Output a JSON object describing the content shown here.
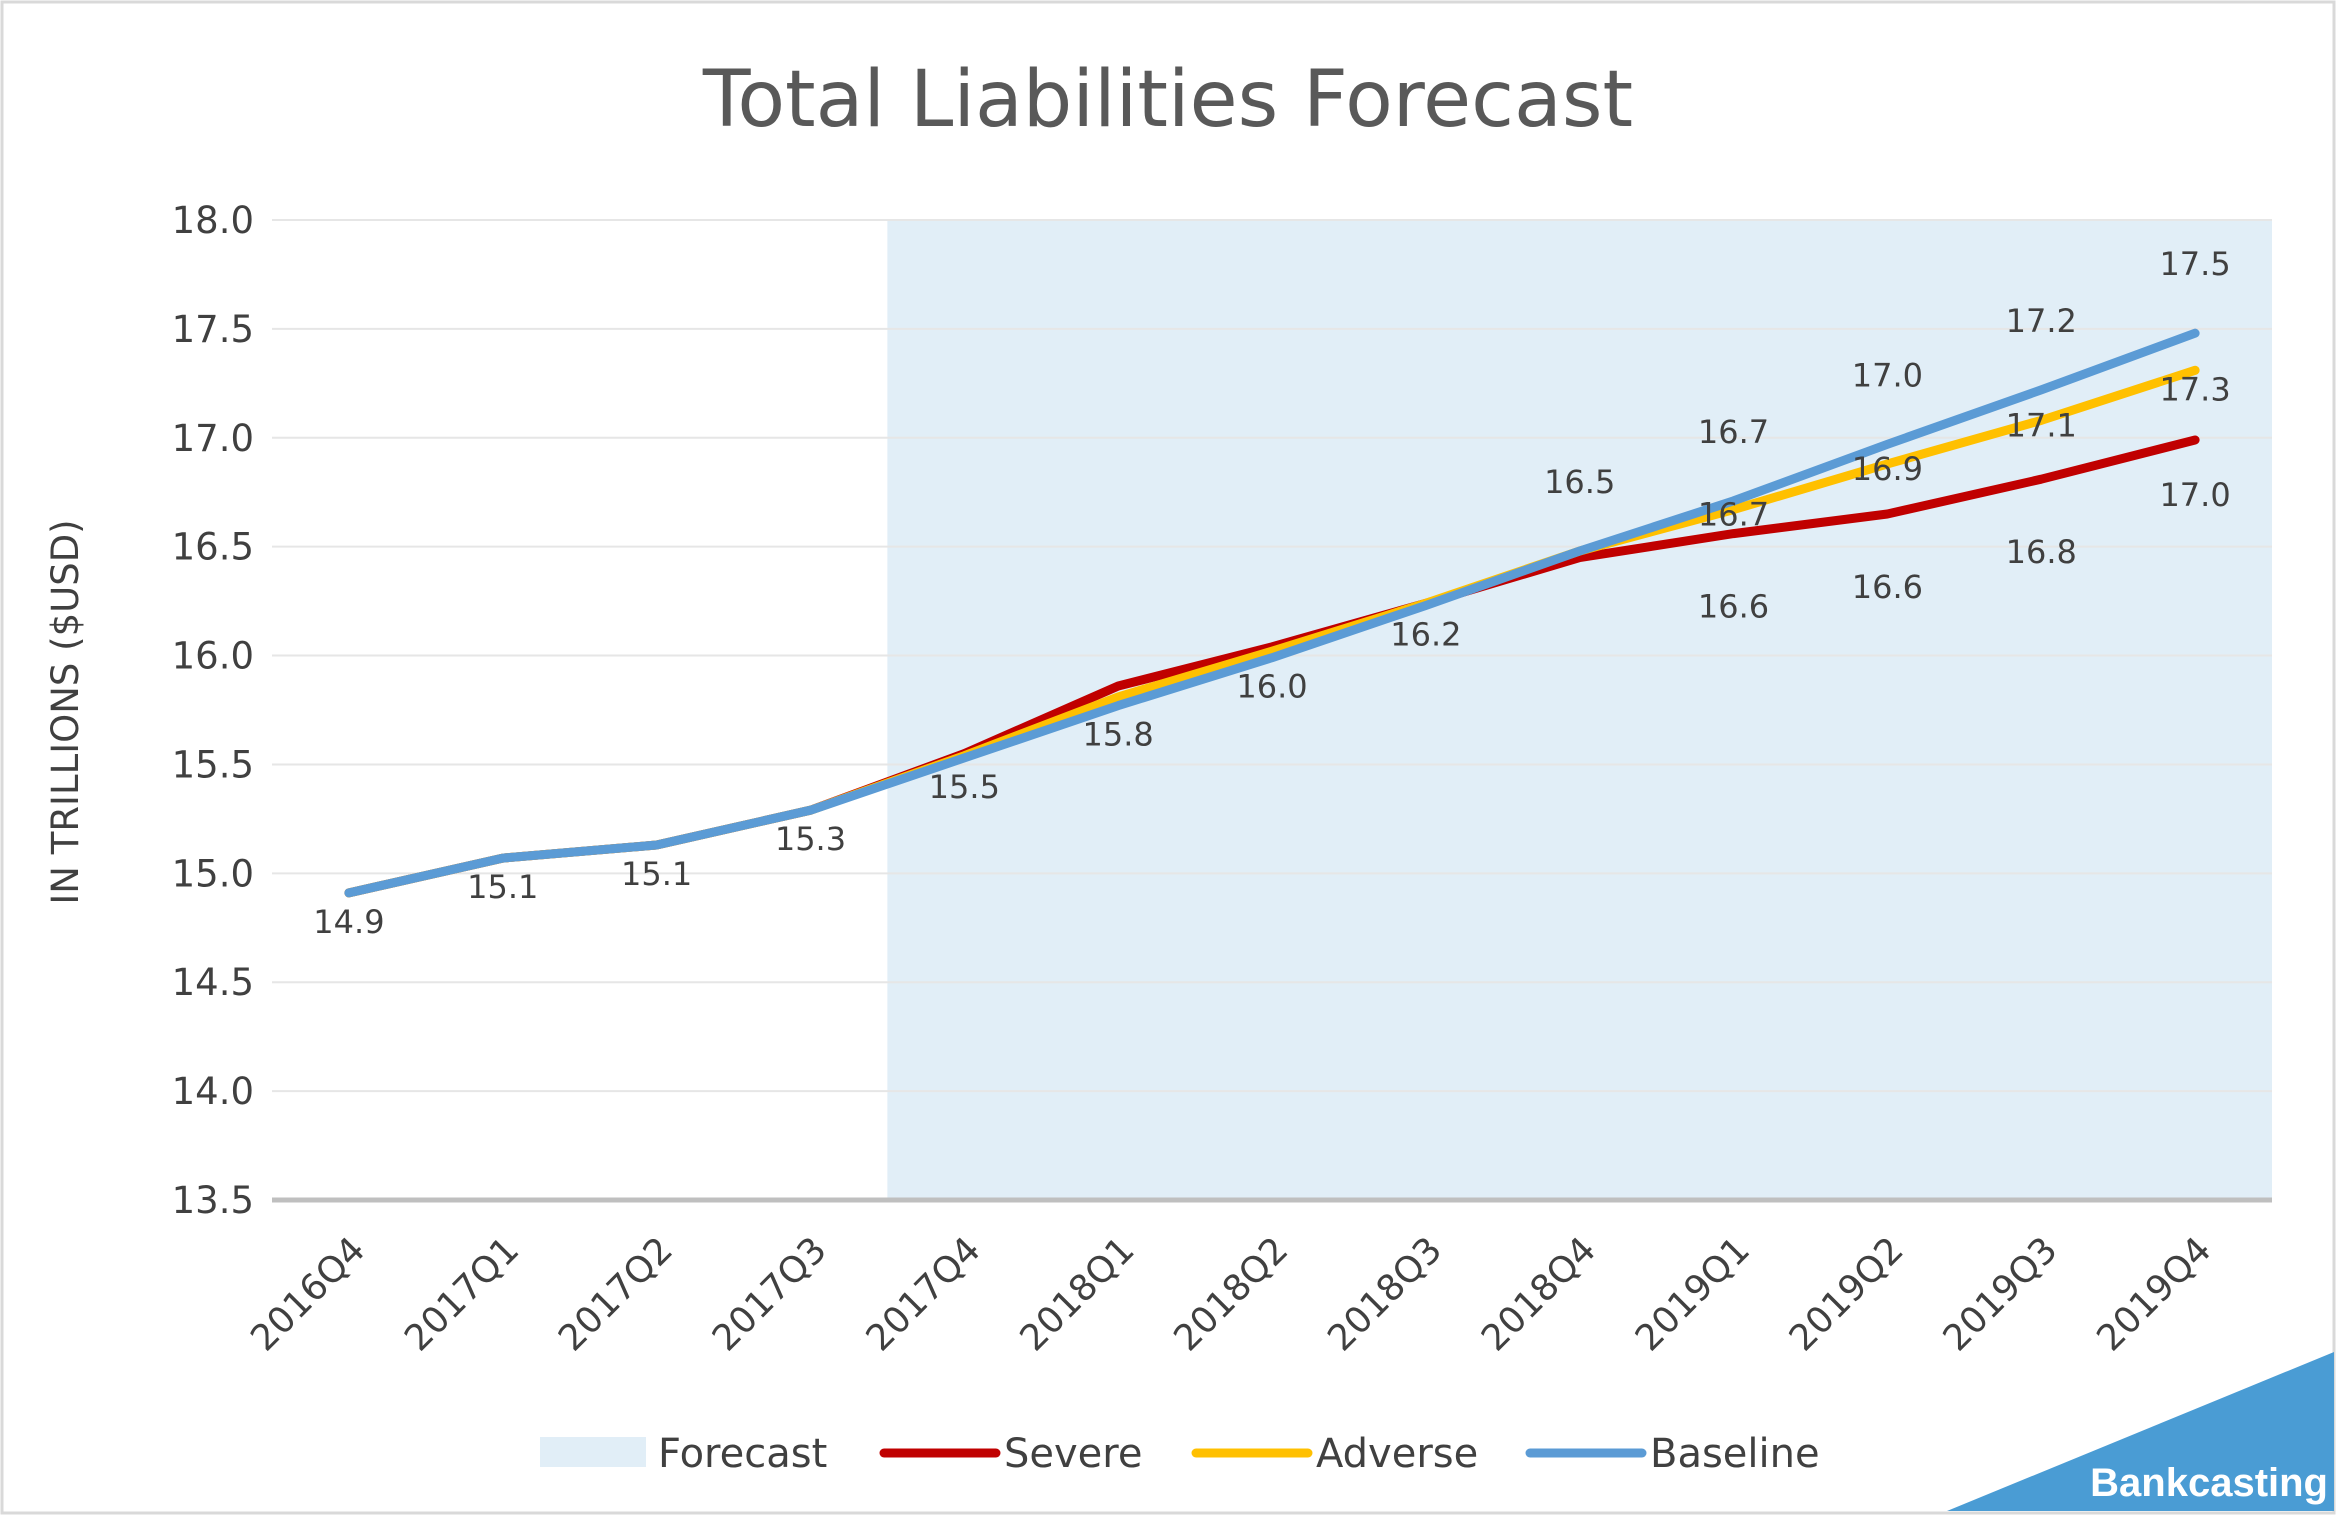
{
  "chart_data": {
    "type": "line",
    "title": "Total Liabilities Forecast",
    "ylabel": "IN TRILLIONS ($USD)",
    "xlabel": "",
    "ylim": [
      13.5,
      18.0
    ],
    "y_ticks": [
      "13.5",
      "14.0",
      "14.5",
      "15.0",
      "15.5",
      "16.0",
      "16.5",
      "17.0",
      "17.5",
      "18.0"
    ],
    "grid": true,
    "legend_position": "bottom",
    "categories": [
      "2016Q4",
      "2017Q1",
      "2017Q2",
      "2017Q3",
      "2017Q4",
      "2018Q1",
      "2018Q2",
      "2018Q3",
      "2018Q4",
      "2019Q1",
      "2019Q2",
      "2019Q3",
      "2019Q4"
    ],
    "forecast_region": {
      "name": "Forecast",
      "start_category": "2017Q3",
      "color": "#e1eef7"
    },
    "series": [
      {
        "name": "Severe",
        "color": "#c00000",
        "values": [
          14.91,
          15.07,
          15.13,
          15.29,
          15.55,
          15.86,
          16.04,
          16.24,
          16.45,
          16.56,
          16.65,
          16.81,
          16.99
        ],
        "labels": [
          "",
          "",
          "",
          "",
          "",
          "",
          "",
          "",
          "",
          "16.6",
          "16.6",
          "16.8",
          "17.0"
        ]
      },
      {
        "name": "Adverse",
        "color": "#ffc000",
        "values": [
          14.91,
          15.07,
          15.13,
          15.29,
          15.54,
          15.81,
          16.02,
          16.24,
          16.48,
          16.67,
          16.88,
          17.08,
          17.31
        ],
        "labels": [
          "",
          "",
          "",
          "",
          "",
          "",
          "",
          "",
          "",
          "16.7",
          "16.9",
          "17.1",
          "17.3"
        ]
      },
      {
        "name": "Baseline",
        "color": "#5b9bd5",
        "values": [
          14.91,
          15.07,
          15.13,
          15.29,
          15.53,
          15.77,
          15.99,
          16.23,
          16.48,
          16.71,
          16.97,
          17.22,
          17.48
        ],
        "labels": [
          "14.9",
          "15.1",
          "15.1",
          "15.3",
          "15.5",
          "15.8",
          "16.0",
          "16.2",
          "16.5",
          "16.7",
          "17.0",
          "17.2",
          "17.5"
        ]
      }
    ]
  },
  "brand": {
    "text": "Bankcasting",
    "color": "#4a9cd4"
  }
}
